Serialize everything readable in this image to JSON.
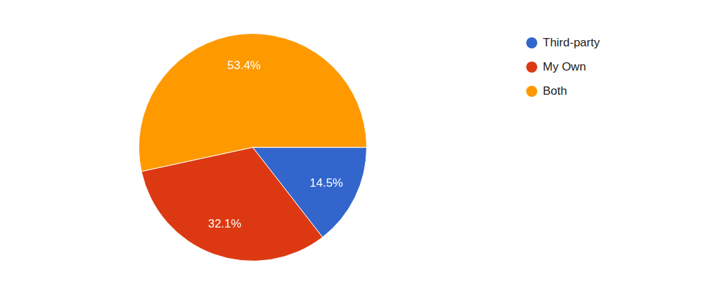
{
  "chart_data": {
    "type": "pie",
    "categories": [
      "Third-party",
      "My Own",
      "Both"
    ],
    "values": [
      14.5,
      32.1,
      53.4
    ],
    "value_labels": [
      "14.5%",
      "32.1%",
      "53.4%"
    ],
    "colors": [
      "#3366cc",
      "#dc3912",
      "#ff9900"
    ],
    "legend": "right",
    "data_labels": true
  }
}
